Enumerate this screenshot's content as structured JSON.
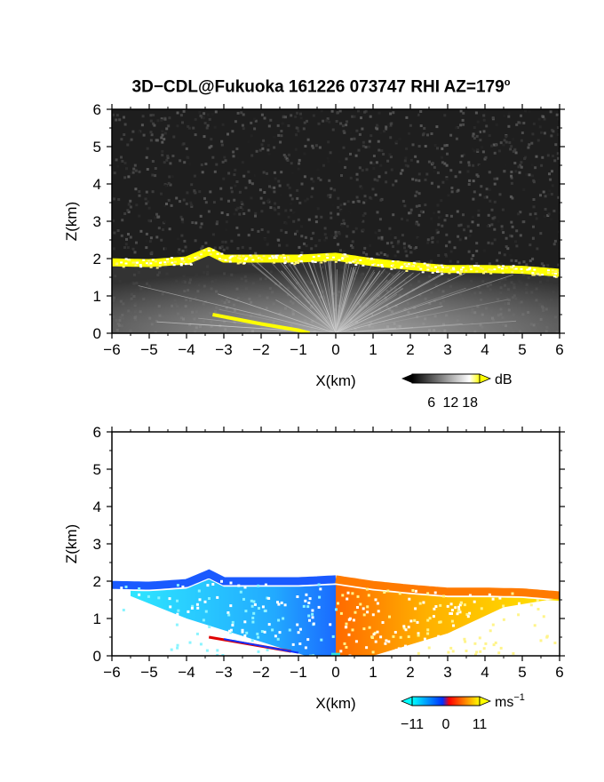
{
  "title": {
    "main": "3D−CDL@Fukuoka 161226 073747 RHI AZ=179",
    "superscript": "o"
  },
  "chart_data": [
    {
      "type": "heatmap",
      "name": "backscatter",
      "xlabel": "X(km)",
      "ylabel": "Z(km)",
      "xlim": [
        -6,
        6
      ],
      "ylim": [
        0,
        6
      ],
      "xticks": [
        "−6",
        "−5",
        "−4",
        "−3",
        "−2",
        "−1",
        "0",
        "1",
        "2",
        "3",
        "4",
        "5",
        "6"
      ],
      "yticks": [
        "0",
        "1",
        "2",
        "3",
        "4",
        "5",
        "6"
      ],
      "colorbar": {
        "unit": "dB",
        "ticks": [
          "6",
          "12",
          "18"
        ],
        "values": [
          6,
          12,
          18
        ]
      },
      "colors": {
        "background": "#1e1e1e",
        "echo": "#ffff00"
      },
      "layer_top_km": [
        [
          -6,
          1.9
        ],
        [
          -5,
          1.88
        ],
        [
          -4,
          1.95
        ],
        [
          -3.4,
          2.2
        ],
        [
          -3,
          2.0
        ],
        [
          -2,
          2.0
        ],
        [
          -1,
          2.0
        ],
        [
          0,
          2.05
        ],
        [
          1,
          1.9
        ],
        [
          2,
          1.8
        ],
        [
          3,
          1.72
        ],
        [
          4,
          1.72
        ],
        [
          5,
          1.7
        ],
        [
          6,
          1.62
        ]
      ],
      "lower_band_km": [
        [
          -3.3,
          0.5
        ],
        [
          -2,
          0.25
        ],
        [
          -1,
          0.08
        ],
        [
          -0.7,
          0.0
        ]
      ]
    },
    {
      "type": "heatmap",
      "name": "radial-velocity",
      "xlabel": "X(km)",
      "ylabel": "Z(km)",
      "xlim": [
        -6,
        6
      ],
      "ylim": [
        0,
        6
      ],
      "xticks": [
        "−6",
        "−5",
        "−4",
        "−3",
        "−2",
        "−1",
        "0",
        "1",
        "2",
        "3",
        "4",
        "5",
        "6"
      ],
      "yticks": [
        "0",
        "1",
        "2",
        "3",
        "4",
        "5",
        "6"
      ],
      "colorbar": {
        "unit": "ms",
        "unit_exponent": "−1",
        "ticks": [
          "−11",
          "0",
          "11"
        ],
        "values": [
          -11,
          0,
          11
        ]
      },
      "colors": {
        "negative": "#1a5aff",
        "neg_light": "#2ee0ff",
        "positive": "#ff3a00",
        "pos_light": "#ffd400"
      }
    }
  ]
}
